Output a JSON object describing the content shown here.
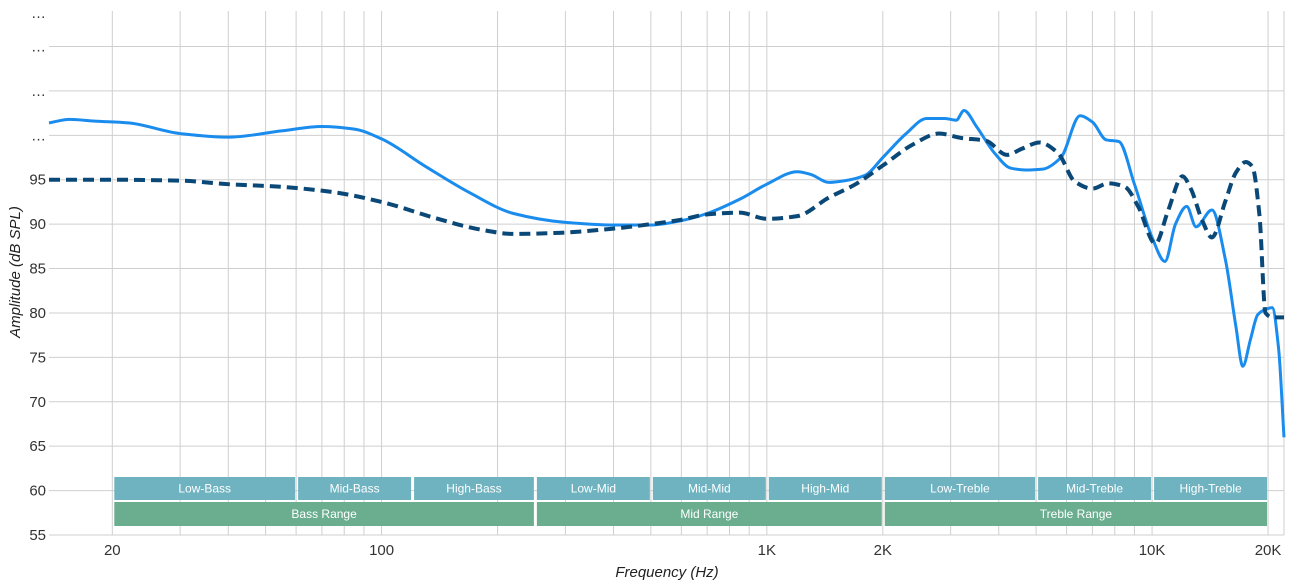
{
  "chart_data": {
    "type": "line",
    "xlabel": "Frequency (Hz)",
    "ylabel": "Amplitude (dB SPL)",
    "x_scale": "log",
    "xlim": [
      13.7,
      22000
    ],
    "ylim": [
      55,
      114
    ],
    "grid": true,
    "x_ticks": [
      {
        "value": 20,
        "label": "20"
      },
      {
        "value": 100,
        "label": "100"
      },
      {
        "value": 1000,
        "label": "1K"
      },
      {
        "value": 2000,
        "label": "2K"
      },
      {
        "value": 10000,
        "label": "10K"
      },
      {
        "value": 20000,
        "label": "20K"
      }
    ],
    "y_ticks": [
      {
        "value": 55,
        "label": "55"
      },
      {
        "value": 60,
        "label": "60"
      },
      {
        "value": 65,
        "label": "65"
      },
      {
        "value": 70,
        "label": "70"
      },
      {
        "value": 75,
        "label": "75"
      },
      {
        "value": 80,
        "label": "80"
      },
      {
        "value": 85,
        "label": "85"
      },
      {
        "value": 90,
        "label": "90"
      },
      {
        "value": 95,
        "label": "95"
      },
      {
        "value": 100,
        "label": "…"
      },
      {
        "value": 105,
        "label": "…"
      },
      {
        "value": 110,
        "label": "…"
      },
      {
        "value": 115,
        "label": "…"
      }
    ],
    "series": [
      {
        "style": "solid",
        "color": "#1a8cee",
        "points": [
          [
            13.7,
            101.4
          ],
          [
            15.5,
            101.8
          ],
          [
            18,
            101.6
          ],
          [
            22,
            101.4
          ],
          [
            30,
            100.2
          ],
          [
            40,
            99.8
          ],
          [
            55,
            100.5
          ],
          [
            70,
            101.0
          ],
          [
            85,
            100.7
          ],
          [
            100,
            99.6
          ],
          [
            130,
            96.5
          ],
          [
            170,
            93.5
          ],
          [
            220,
            91.2
          ],
          [
            300,
            90.2
          ],
          [
            400,
            89.9
          ],
          [
            500,
            89.9
          ],
          [
            600,
            90.4
          ],
          [
            700,
            91.2
          ],
          [
            850,
            92.8
          ],
          [
            1000,
            94.5
          ],
          [
            1200,
            95.9
          ],
          [
            1300,
            95.6
          ],
          [
            1450,
            94.7
          ],
          [
            1600,
            94.9
          ],
          [
            1800,
            95.5
          ],
          [
            2000,
            97.5
          ],
          [
            2300,
            100.2
          ],
          [
            2600,
            101.9
          ],
          [
            2900,
            101.9
          ],
          [
            3100,
            101.7
          ],
          [
            3250,
            102.8
          ],
          [
            3500,
            101.0
          ],
          [
            3900,
            98.0
          ],
          [
            4300,
            96.3
          ],
          [
            4700,
            96.1
          ],
          [
            5200,
            96.2
          ],
          [
            5800,
            97.5
          ],
          [
            6500,
            102.2
          ],
          [
            7000,
            101.5
          ],
          [
            7600,
            99.5
          ],
          [
            8200,
            99.3
          ],
          [
            9000,
            94.5
          ],
          [
            10000,
            88.5
          ],
          [
            10800,
            85.8
          ],
          [
            11500,
            90.0
          ],
          [
            12300,
            92.0
          ],
          [
            13000,
            89.7
          ],
          [
            14300,
            91.6
          ],
          [
            15500,
            86.0
          ],
          [
            16500,
            78.5
          ],
          [
            17200,
            74.0
          ],
          [
            18000,
            77.0
          ],
          [
            18800,
            79.8
          ],
          [
            19700,
            80.4
          ],
          [
            20500,
            80.6
          ],
          [
            21300,
            76.0
          ],
          [
            22000,
            66.0
          ]
        ]
      },
      {
        "style": "dashed",
        "color": "#0a4878",
        "points": [
          [
            13.7,
            95.0
          ],
          [
            20,
            95.0
          ],
          [
            30,
            94.9
          ],
          [
            40,
            94.5
          ],
          [
            55,
            94.2
          ],
          [
            75,
            93.6
          ],
          [
            100,
            92.5
          ],
          [
            140,
            90.6
          ],
          [
            180,
            89.4
          ],
          [
            220,
            88.9
          ],
          [
            280,
            89.0
          ],
          [
            400,
            89.5
          ],
          [
            500,
            90.0
          ],
          [
            600,
            90.5
          ],
          [
            700,
            91.1
          ],
          [
            850,
            91.3
          ],
          [
            1000,
            90.6
          ],
          [
            1200,
            90.9
          ],
          [
            1450,
            93.0
          ],
          [
            1700,
            94.5
          ],
          [
            2000,
            96.6
          ],
          [
            2400,
            99.0
          ],
          [
            2800,
            100.2
          ],
          [
            3200,
            99.7
          ],
          [
            3700,
            99.4
          ],
          [
            4200,
            97.8
          ],
          [
            4600,
            98.5
          ],
          [
            5100,
            99.2
          ],
          [
            5700,
            98.0
          ],
          [
            6300,
            94.8
          ],
          [
            7000,
            94.0
          ],
          [
            7700,
            94.6
          ],
          [
            8500,
            94.2
          ],
          [
            9200,
            92.0
          ],
          [
            10200,
            87.8
          ],
          [
            11000,
            91.5
          ],
          [
            12000,
            95.4
          ],
          [
            12600,
            94.0
          ],
          [
            13500,
            90.4
          ],
          [
            14300,
            88.5
          ],
          [
            15500,
            92.6
          ],
          [
            16500,
            95.8
          ],
          [
            17500,
            97.0
          ],
          [
            18200,
            96.5
          ],
          [
            19000,
            91.0
          ],
          [
            19700,
            80.0
          ],
          [
            20500,
            79.5
          ],
          [
            22000,
            79.5
          ]
        ]
      }
    ],
    "bands": [
      {
        "row": 0,
        "label": "Low-Bass",
        "from": 20,
        "to": 60
      },
      {
        "row": 0,
        "label": "Mid-Bass",
        "from": 60,
        "to": 120
      },
      {
        "row": 0,
        "label": "High-Bass",
        "from": 120,
        "to": 250
      },
      {
        "row": 0,
        "label": "Low-Mid",
        "from": 250,
        "to": 500
      },
      {
        "row": 0,
        "label": "Mid-Mid",
        "from": 500,
        "to": 1000
      },
      {
        "row": 0,
        "label": "High-Mid",
        "from": 1000,
        "to": 2000
      },
      {
        "row": 0,
        "label": "Low-Treble",
        "from": 2000,
        "to": 5000
      },
      {
        "row": 0,
        "label": "Mid-Treble",
        "from": 5000,
        "to": 10000
      },
      {
        "row": 0,
        "label": "High-Treble",
        "from": 10000,
        "to": 20000
      },
      {
        "row": 1,
        "label": "Bass Range",
        "from": 20,
        "to": 250
      },
      {
        "row": 1,
        "label": "Mid Range",
        "from": 250,
        "to": 2000
      },
      {
        "row": 1,
        "label": "Treble Range",
        "from": 2000,
        "to": 20000
      }
    ],
    "colors": {
      "band_row0": "#6fb3c1",
      "band_row1": "#6aad8f",
      "grid": "#cfcfcf"
    }
  }
}
